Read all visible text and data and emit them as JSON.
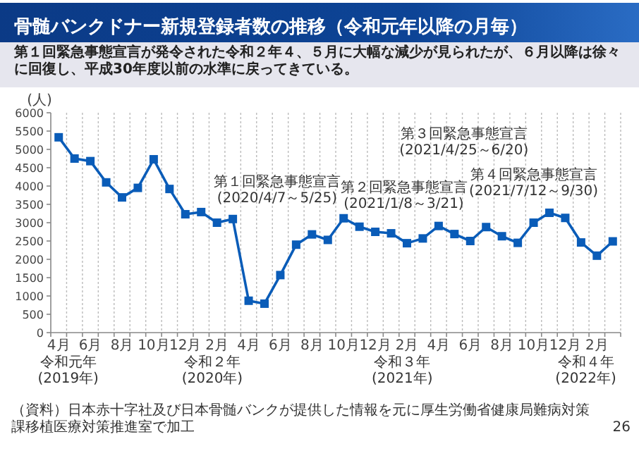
{
  "chart_data": {
    "type": "line",
    "title": "骨髄バンクドナー新規登録者数の推移（令和元年以降の月毎）",
    "subtitle": "第１回緊急事態宣言が発令された令和２年４、５月に大幅な減少が見られたが、６月以降は徐々に回復し、平成30年度以前の水準に戻ってきている。",
    "ylabel": "(人)",
    "categories": [
      "4月",
      null,
      "6月",
      null,
      "8月",
      null,
      "10月",
      null,
      "12月",
      null,
      "2月",
      null,
      "4月",
      null,
      "6月",
      null,
      "8月",
      null,
      "10月",
      null,
      "12月",
      null,
      "2月",
      null,
      "4月",
      null,
      "6月",
      null,
      "8月",
      null,
      "10月",
      null,
      "12月",
      null,
      "2月",
      null
    ],
    "series": [
      {
        "color": "#0a5cb8",
        "values": [
          5330,
          4750,
          4680,
          4100,
          3690,
          3950,
          4730,
          3920,
          3230,
          3290,
          3000,
          3100,
          870,
          790,
          1570,
          2400,
          2680,
          2530,
          3120,
          2890,
          2750,
          2710,
          2440,
          2570,
          2910,
          2690,
          2500,
          2880,
          2630,
          2450,
          3000,
          3270,
          3130,
          2460,
          2100,
          2490
        ]
      }
    ],
    "ylim": [
      0,
      6000
    ],
    "yticks": [
      0,
      500,
      1000,
      1500,
      2000,
      2500,
      3000,
      3500,
      4000,
      4500,
      5000,
      5500,
      6000
    ],
    "grid": "x",
    "marker": "square",
    "line_style": "solid",
    "annotations": [
      "第１回緊急事態宣言\n(2020/4/7～5/25)",
      "第２回緊急事態宣言\n(2021/1/8～3/21)",
      "第３回緊急事態宣言\n(2021/4/25～6/20)",
      "第４回緊急事態宣言\n(2021/7/12～9/30)",
      "令和元年\n(2019年)",
      "令和２年\n(2020年)",
      "令和３年\n(2021年)",
      "令和４年\n(2022年)",
      "（資料）日本赤十字社及び日本骨髄バンクが提供した情報を元に厚生労働省健康局難病対策課移植医療対策推進室で加工",
      "26"
    ]
  }
}
